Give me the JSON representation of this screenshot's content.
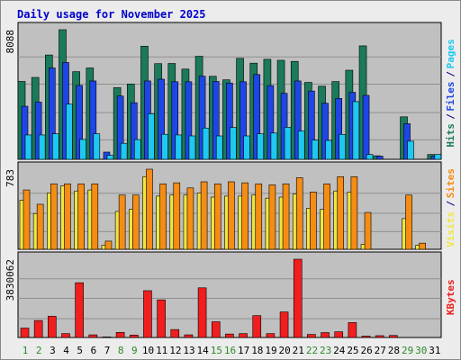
{
  "page": {
    "title": "Daily usage for November 2025"
  },
  "chart_data": [
    {
      "type": "bar",
      "panel": "hits-files-pages",
      "categories": [
        "1",
        "2",
        "3",
        "4",
        "5",
        "6",
        "7",
        "8",
        "9",
        "10",
        "11",
        "12",
        "13",
        "14",
        "15",
        "16",
        "17",
        "18",
        "19",
        "20",
        "21",
        "22",
        "23",
        "24",
        "25",
        "26",
        "27",
        "28",
        "29",
        "30",
        "31"
      ],
      "ytick_label": "8088",
      "ymax": 8088,
      "series": [
        {
          "name": "Hits",
          "color": "#1a7a5a",
          "values": [
            4860,
            5110,
            6510,
            8088,
            5470,
            5700,
            0,
            4470,
            4700,
            7060,
            5970,
            5980,
            5630,
            6430,
            5180,
            4960,
            6300,
            6000,
            6240,
            6180,
            6110,
            4800,
            4560,
            4850,
            5560,
            7080,
            220,
            0,
            2650,
            0,
            300
          ]
        },
        {
          "name": "Files",
          "color": "#1e46e6",
          "values": [
            3310,
            3570,
            5700,
            6040,
            4610,
            4890,
            450,
            3950,
            3530,
            4890,
            5000,
            4840,
            4840,
            5190,
            4860,
            4760,
            4840,
            5290,
            4600,
            4120,
            4890,
            4260,
            3500,
            3800,
            4180,
            3990,
            200,
            0,
            2220,
            0,
            200
          ]
        },
        {
          "name": "Pages",
          "color": "#1ec8f0",
          "values": [
            1520,
            1520,
            1590,
            3440,
            1240,
            1590,
            250,
            1000,
            1230,
            2840,
            1560,
            1520,
            1460,
            1950,
            1460,
            1990,
            1460,
            1590,
            1640,
            2000,
            1770,
            1200,
            1180,
            1550,
            3600,
            300,
            0,
            0,
            1130,
            0,
            300
          ]
        }
      ]
    },
    {
      "type": "bar",
      "panel": "visits-sites",
      "categories": [
        "1",
        "2",
        "3",
        "4",
        "5",
        "6",
        "7",
        "8",
        "9",
        "10",
        "11",
        "12",
        "13",
        "14",
        "15",
        "16",
        "17",
        "18",
        "19",
        "20",
        "21",
        "22",
        "23",
        "24",
        "25",
        "26",
        "27",
        "28",
        "29",
        "30",
        "31"
      ],
      "ytick_label": "783",
      "ymax": 783,
      "series": [
        {
          "name": "Visits",
          "color": "#f0e640",
          "values": [
            480,
            350,
            550,
            620,
            570,
            580,
            40,
            370,
            390,
            710,
            520,
            530,
            530,
            550,
            510,
            520,
            520,
            530,
            500,
            510,
            540,
            400,
            390,
            570,
            560,
            50,
            0,
            0,
            300,
            40,
            0
          ]
        },
        {
          "name": "Sites",
          "color": "#f58c14",
          "values": [
            580,
            440,
            640,
            640,
            640,
            640,
            80,
            530,
            530,
            783,
            640,
            650,
            600,
            660,
            640,
            660,
            650,
            640,
            630,
            640,
            700,
            560,
            640,
            710,
            710,
            360,
            0,
            0,
            530,
            60,
            0
          ]
        }
      ]
    },
    {
      "type": "bar",
      "panel": "kbytes",
      "categories": [
        "1",
        "2",
        "3",
        "4",
        "5",
        "6",
        "7",
        "8",
        "9",
        "10",
        "11",
        "12",
        "13",
        "14",
        "15",
        "16",
        "17",
        "18",
        "19",
        "20",
        "21",
        "22",
        "23",
        "24",
        "25",
        "26",
        "27",
        "28",
        "29",
        "30",
        "31"
      ],
      "ytick_label": "3830062",
      "ymax": 3830062,
      "series": [
        {
          "name": "KBytes",
          "color": "#f01e1e",
          "values": [
            460000,
            830000,
            1040000,
            190000,
            2680000,
            130000,
            30000,
            250000,
            120000,
            2290000,
            1840000,
            390000,
            130000,
            2430000,
            770000,
            170000,
            190000,
            1070000,
            190000,
            1250000,
            3830062,
            150000,
            240000,
            280000,
            730000,
            70000,
            90000,
            100000,
            0,
            0,
            0
          ]
        }
      ]
    }
  ],
  "x_axis": {
    "labels": [
      "1",
      "2",
      "3",
      "4",
      "5",
      "6",
      "7",
      "8",
      "9",
      "10",
      "11",
      "12",
      "13",
      "14",
      "15",
      "16",
      "17",
      "18",
      "19",
      "20",
      "21",
      "22",
      "23",
      "24",
      "25",
      "26",
      "27",
      "28",
      "29",
      "30",
      "31"
    ],
    "weekend_days": [
      "1",
      "2",
      "8",
      "9",
      "15",
      "16",
      "22",
      "23",
      "29",
      "30"
    ],
    "weekday_color": "#000000",
    "weekend_color": "#2a8a2a"
  },
  "legends": {
    "hits_files_pages": [
      {
        "text": "Hits",
        "color": "#1a7a5a"
      },
      {
        "text": "/",
        "color": "#000080"
      },
      {
        "text": "Files",
        "color": "#1e46e6"
      },
      {
        "text": "/",
        "color": "#000080"
      },
      {
        "text": "Pages",
        "color": "#1ec8f0"
      }
    ],
    "visits_sites": [
      {
        "text": "Visits",
        "color": "#f0e640"
      },
      {
        "text": "/",
        "color": "#000080"
      },
      {
        "text": "Sites",
        "color": "#f58c14"
      }
    ],
    "kbytes": [
      {
        "text": "KBytes",
        "color": "#f01e1e"
      }
    ]
  },
  "colors": {
    "panel_bg": "#c0c0c0",
    "frame_bg": "#ececec",
    "title": "#0000cc",
    "gridline": "#909090"
  }
}
